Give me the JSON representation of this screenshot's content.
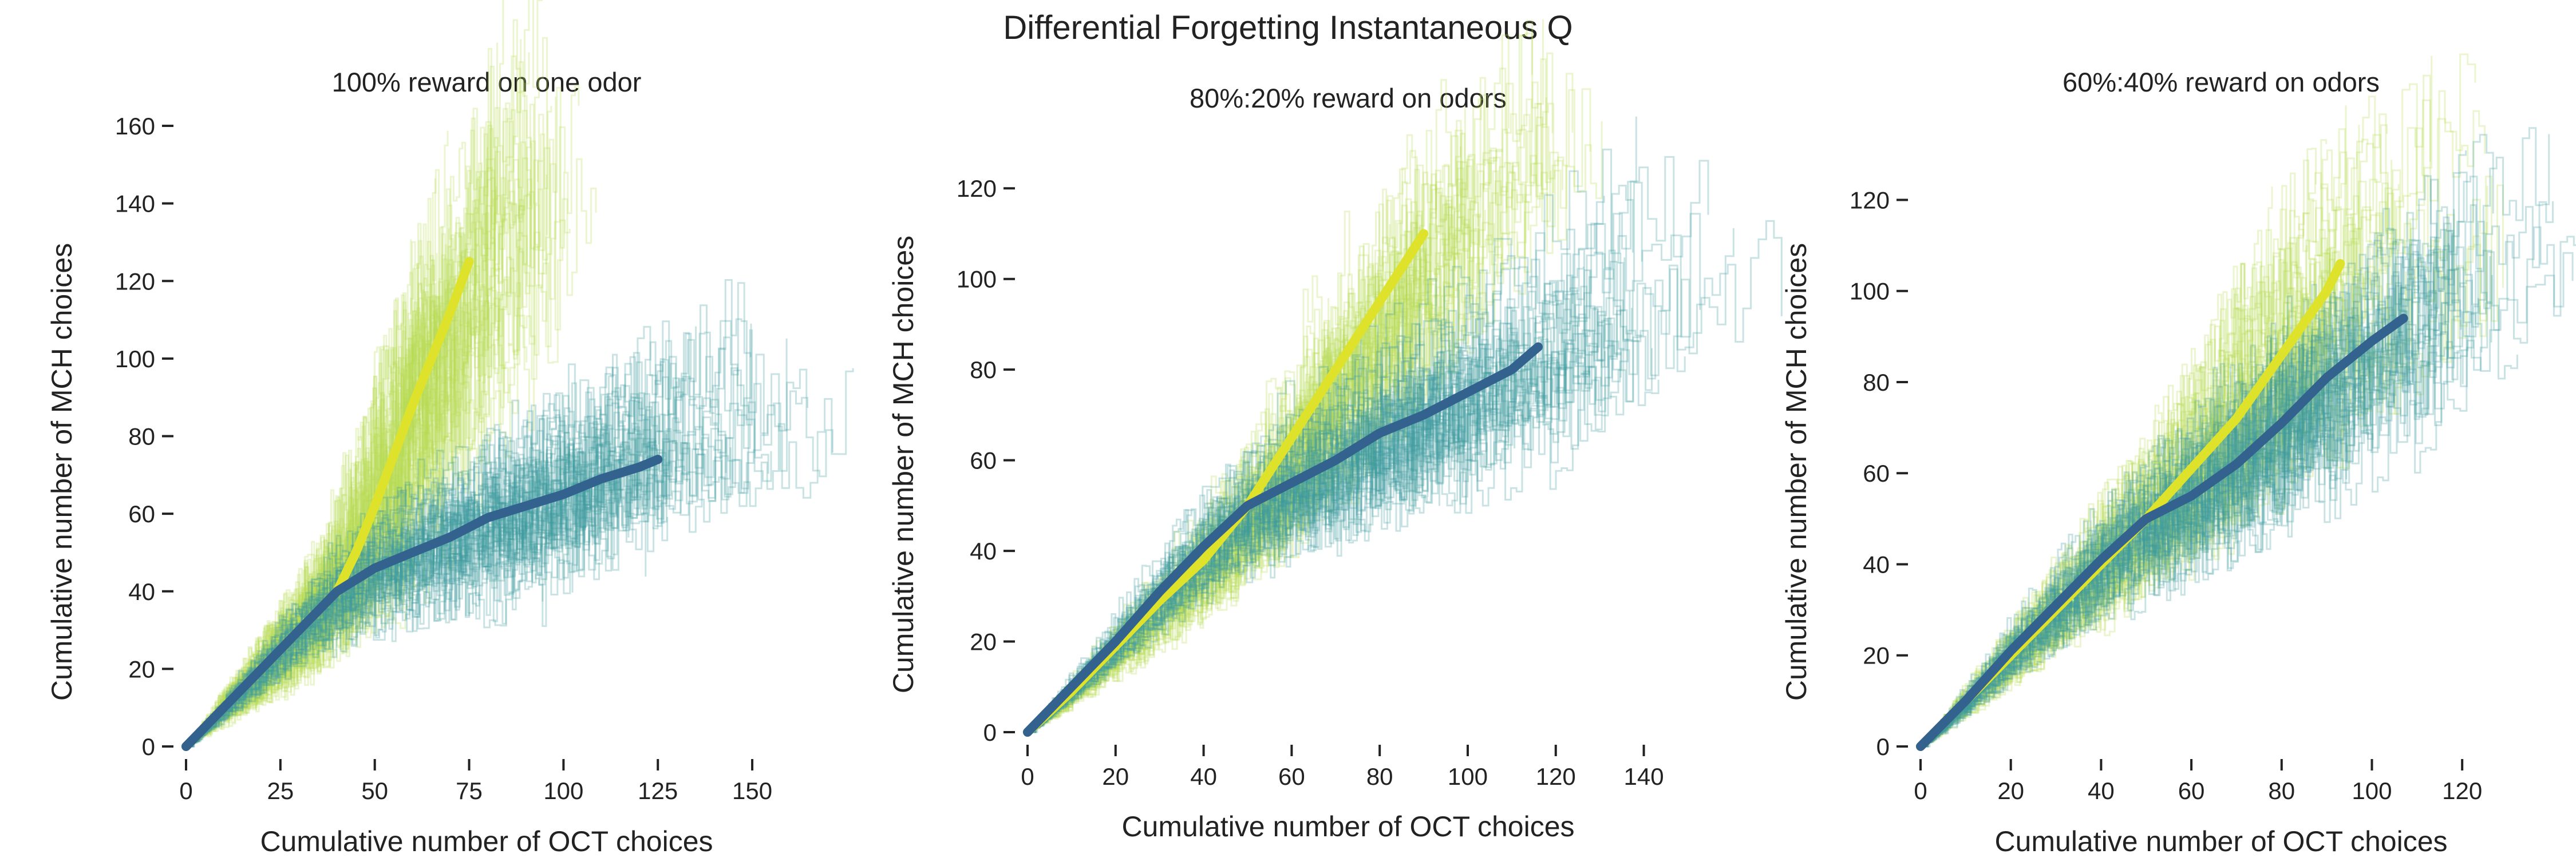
{
  "figure": {
    "title": "Differential Forgetting Instantaneous Q"
  },
  "colors": {
    "oct_trials": "#3e9a9e",
    "mch_trials": "#b8dc52",
    "oct_mean": "#34628f",
    "mch_mean": "#dfe22a"
  },
  "chart_data": [
    {
      "type": "line",
      "title": "100% reward on one odor",
      "xlabel": "Cumulative number of OCT choices",
      "ylabel": "Cumulative number of MCH choices",
      "xlim": [
        0,
        160
      ],
      "ylim": [
        0,
        160
      ],
      "xticks": [
        0,
        25,
        50,
        75,
        100,
        125,
        150
      ],
      "yticks": [
        0,
        20,
        40,
        60,
        80,
        100,
        120,
        140,
        160
      ],
      "series": [
        {
          "color_key": "mch_mean",
          "x": [
            0,
            10,
            20,
            30,
            40,
            45,
            50,
            55,
            60,
            65,
            70,
            75
          ],
          "y": [
            0,
            10,
            20,
            30,
            40,
            50,
            62,
            75,
            88,
            100,
            112,
            125
          ]
        },
        {
          "color_key": "oct_mean",
          "x": [
            0,
            10,
            20,
            30,
            40,
            50,
            60,
            70,
            80,
            90,
            100,
            110,
            120,
            125
          ],
          "y": [
            0,
            10,
            20,
            30,
            40,
            46,
            50,
            54,
            59,
            62,
            65,
            69,
            72,
            74
          ]
        }
      ]
    },
    {
      "type": "line",
      "title": "80%:20% reward on odors",
      "xlabel": "Cumulative number of OCT choices",
      "ylabel": "Cumulative number of MCH choices",
      "xlim": [
        0,
        145
      ],
      "ylim": [
        0,
        130
      ],
      "xticks": [
        0,
        20,
        40,
        60,
        80,
        100,
        120,
        140
      ],
      "yticks": [
        0,
        20,
        40,
        60,
        80,
        100,
        120
      ],
      "series": [
        {
          "color_key": "mch_mean",
          "x": [
            0,
            10,
            20,
            30,
            40,
            50,
            60,
            70,
            80,
            90
          ],
          "y": [
            0,
            9,
            19,
            29,
            38,
            50,
            65,
            80,
            95,
            110
          ]
        },
        {
          "color_key": "oct_mean",
          "x": [
            0,
            10,
            20,
            30,
            40,
            50,
            60,
            70,
            80,
            90,
            100,
            110,
            116
          ],
          "y": [
            0,
            10,
            20,
            31,
            41,
            50,
            55,
            60,
            66,
            70,
            75,
            80,
            85
          ]
        }
      ]
    },
    {
      "type": "line",
      "title": "60%:40% reward on odors",
      "xlabel": "Cumulative number of OCT choices",
      "ylabel": "Cumulative number of MCH choices",
      "xlim": [
        0,
        130
      ],
      "ylim": [
        0,
        135
      ],
      "xticks": [
        0,
        20,
        40,
        60,
        80,
        100,
        120
      ],
      "yticks": [
        0,
        20,
        40,
        60,
        80,
        100,
        120
      ],
      "series": [
        {
          "color_key": "mch_mean",
          "x": [
            0,
            10,
            20,
            30,
            40,
            50,
            60,
            70,
            80,
            90,
            93
          ],
          "y": [
            0,
            10,
            20,
            30,
            40,
            50,
            61,
            72,
            86,
            100,
            106
          ]
        },
        {
          "color_key": "oct_mean",
          "x": [
            0,
            10,
            20,
            30,
            40,
            50,
            60,
            70,
            80,
            90,
            100,
            107
          ],
          "y": [
            0,
            10,
            21,
            31,
            41,
            50,
            55,
            62,
            71,
            81,
            89,
            94
          ]
        }
      ]
    }
  ]
}
